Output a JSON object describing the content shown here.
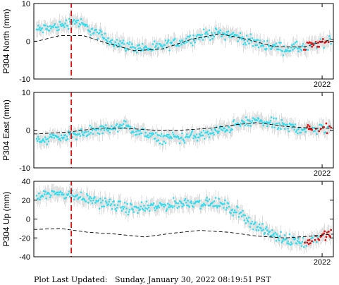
{
  "footer": {
    "label": "Plot Last Updated:",
    "value": "Sunday, January 30, 2022 08:19:51 PST"
  },
  "colors": {
    "daily_points": "#33ddee",
    "rapid_points": "#dd1111",
    "error_bars": "#c8c8c8",
    "model_line": "#000000",
    "event_line": "#dd1111",
    "frame": "#000000"
  },
  "chart_data": [
    {
      "type": "scatter",
      "ylabel": "P304 North (mm)",
      "ylim": [
        -10,
        10
      ],
      "yticks": [
        -10,
        0,
        10
      ],
      "xtick_labels": [
        {
          "t": 2022.0,
          "label": "2022"
        }
      ],
      "xlim": [
        2018.92,
        2022.12
      ],
      "event_line_x": 2019.32,
      "model_line": {
        "x": [
          2018.95,
          2019.2,
          2019.45,
          2019.7,
          2020.0,
          2020.3,
          2020.6,
          2020.9,
          2021.2,
          2021.5,
          2021.8,
          2022.1
        ],
        "y": [
          0.0,
          1.5,
          1.5,
          -0.5,
          -2.5,
          -2.0,
          0.5,
          2.0,
          0.5,
          -1.5,
          -1.5,
          0.5
        ]
      },
      "daily_trend": {
        "x": [
          2018.95,
          2019.2,
          2019.35,
          2019.5,
          2019.7,
          2019.95,
          2020.2,
          2020.5,
          2020.8,
          2021.0,
          2021.3,
          2021.6,
          2021.85,
          2022.1
        ],
        "y": [
          3.0,
          4.0,
          5.5,
          3.5,
          0.5,
          -1.5,
          -2.0,
          0.0,
          2.0,
          2.0,
          -0.5,
          -2.0,
          -1.5,
          0.5
        ]
      },
      "daily_range": [
        2018.95,
        2021.8
      ],
      "rapid_range": [
        2021.8,
        2022.1
      ]
    },
    {
      "type": "scatter",
      "ylabel": "P304 East (mm)",
      "ylim": [
        -10,
        10
      ],
      "yticks": [
        -10,
        0,
        10
      ],
      "xtick_labels": [
        {
          "t": 2022.0,
          "label": "2022"
        }
      ],
      "xlim": [
        2018.92,
        2022.12
      ],
      "event_line_x": 2019.32,
      "model_line": {
        "x": [
          2018.95,
          2019.3,
          2019.6,
          2019.9,
          2020.2,
          2020.5,
          2020.8,
          2021.1,
          2021.3,
          2021.6,
          2021.9,
          2022.1
        ],
        "y": [
          -1.0,
          -0.5,
          0.5,
          0.5,
          0.0,
          0.0,
          0.5,
          1.5,
          2.0,
          1.0,
          0.5,
          0.5
        ]
      },
      "daily_trend": {
        "x": [
          2018.95,
          2019.3,
          2019.6,
          2019.9,
          2020.2,
          2020.5,
          2020.8,
          2021.1,
          2021.3,
          2021.6,
          2021.9,
          2022.1
        ],
        "y": [
          -2.5,
          -1.5,
          0.0,
          1.0,
          -2.0,
          -2.0,
          -1.0,
          1.5,
          2.5,
          1.0,
          0.0,
          0.5
        ]
      },
      "daily_range": [
        2018.95,
        2021.8
      ],
      "rapid_range": [
        2021.8,
        2022.1
      ]
    },
    {
      "type": "scatter",
      "ylabel": "P304 Up (mm)",
      "ylim": [
        -40,
        40
      ],
      "yticks": [
        -40,
        -20,
        0,
        20,
        40
      ],
      "xtick_labels": [
        {
          "t": 2022.0,
          "label": "2022"
        }
      ],
      "xlim": [
        2018.92,
        2022.12
      ],
      "event_line_x": 2019.32,
      "model_line": {
        "x": [
          2018.95,
          2019.2,
          2019.5,
          2019.8,
          2020.1,
          2020.4,
          2020.7,
          2021.0,
          2021.3,
          2021.6,
          2021.9,
          2022.1
        ],
        "y": [
          -11,
          -10,
          -14,
          -16,
          -19,
          -15,
          -12,
          -14,
          -18,
          -20,
          -18,
          -16
        ]
      },
      "daily_trend": {
        "x": [
          2018.95,
          2019.2,
          2019.4,
          2019.7,
          2020.0,
          2020.3,
          2020.6,
          2020.9,
          2021.1,
          2021.3,
          2021.5,
          2021.8,
          2022.1
        ],
        "y": [
          26,
          28,
          24,
          16,
          10,
          14,
          18,
          16,
          8,
          -8,
          -18,
          -25,
          -14
        ]
      },
      "daily_range": [
        2018.95,
        2021.8
      ],
      "rapid_range": [
        2021.8,
        2022.1
      ]
    }
  ]
}
